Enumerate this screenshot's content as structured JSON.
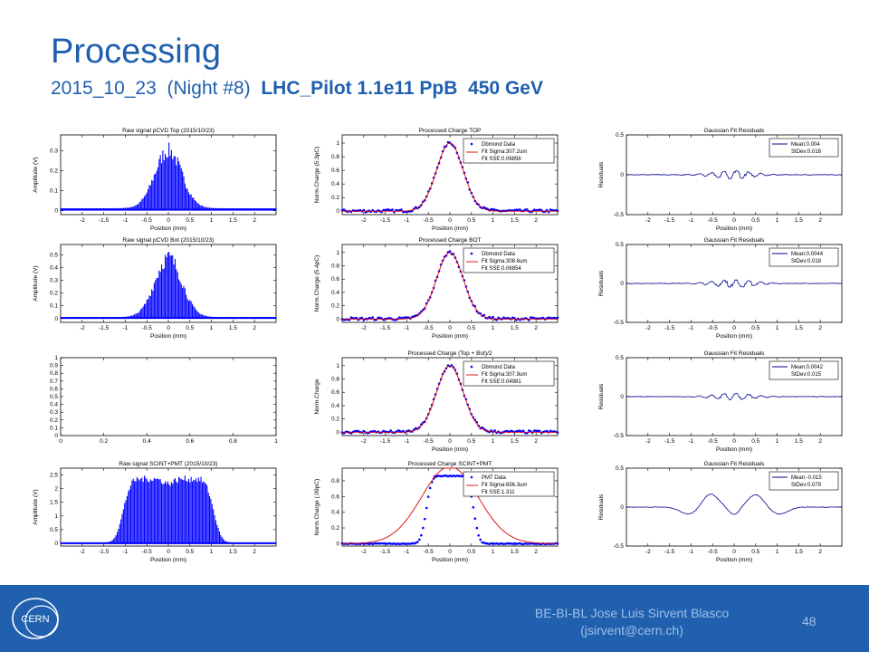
{
  "slide": {
    "title": "Processing",
    "subtitle_date": "2015_10_23",
    "subtitle_night": "(Night #8)",
    "subtitle_beam": "LHC_Pilot 1.1e11 PpB  450 GeV",
    "author_line1": "BE-BI-BL Jose Luis Sirvent Blasco",
    "author_line2": "(jsirvent@cern.ch)",
    "page_number": "48",
    "logo_text": "CERN"
  },
  "colors": {
    "title": "#1f5fae",
    "footer": "#2060ae",
    "data": "#0000ff",
    "fit": "#dd0000",
    "residual": "#00008b",
    "footer_text": "#9fbfe6"
  },
  "chart_data": [
    {
      "type": "bar",
      "title": "Raw signal pCVD Top (2015/10/23)",
      "xlabel": "Position (mm)",
      "ylabel": "Amplitude (V)",
      "xlim": [
        -2.5,
        2.5
      ],
      "ylim": [
        -0.02,
        0.38
      ],
      "xticks": [
        "-2",
        "-1.5",
        "-1",
        "-0.5",
        "0",
        "0.5",
        "1",
        "1.5",
        "2"
      ],
      "yticks": [
        "0",
        "0.1",
        "0.2",
        "0.3"
      ],
      "ytick_values": [
        0,
        0.1,
        0.2,
        0.3
      ],
      "shape": "gaussian",
      "peak": 0.33,
      "sigma_mm": 0.31
    },
    {
      "type": "scatter",
      "title": "Processed Charge TOP",
      "xlabel": "Position (mm)",
      "ylabel": "Norm.Charge (5.3pC)",
      "xlim": [
        -2.5,
        2.5
      ],
      "ylim": [
        -0.05,
        1.12
      ],
      "xticks": [
        "-2",
        "-1.5",
        "-1",
        "-0.5",
        "0",
        "0.5",
        "1",
        "1.5",
        "2"
      ],
      "yticks": [
        "0",
        "0.2",
        "0.4",
        "0.6",
        "0.8",
        "1"
      ],
      "ytick_values": [
        0,
        0.2,
        0.4,
        0.6,
        0.8,
        1
      ],
      "shape": "gaussian",
      "peak": 1.0,
      "sigma_mm": 0.3072,
      "legend": [
        "Dbmond Data",
        "Fit Sigma:307.2um",
        "Fit SSE:0.06856"
      ]
    },
    {
      "type": "line",
      "title": "Gaussian Fit Residuals",
      "xlabel": "Position (mm)",
      "ylabel": "Residuals",
      "xlim": [
        -2.5,
        2.5
      ],
      "ylim": [
        -0.5,
        0.5
      ],
      "xticks": [
        "-2",
        "-1.5",
        "-1",
        "-0.5",
        "0",
        "0.5",
        "1",
        "1.5",
        "2"
      ],
      "yticks": [
        "-0.5",
        "0",
        "0.5"
      ],
      "ytick_values": [
        -0.5,
        0,
        0.5
      ],
      "shape": "residual_small",
      "amp": 0.05,
      "legend": [
        "Mean:0.004",
        "StDev:0.018"
      ]
    },
    {
      "type": "bar",
      "title": "Raw signal pCVD Bot (2015/10/23)",
      "xlabel": "Position (mm)",
      "ylabel": "Amplitude (V)",
      "xlim": [
        -2.5,
        2.5
      ],
      "ylim": [
        -0.03,
        0.58
      ],
      "xticks": [
        "-2",
        "-1.5",
        "-1",
        "-0.5",
        "0",
        "0.5",
        "1",
        "1.5",
        "2"
      ],
      "yticks": [
        "0",
        "0.1",
        "0.2",
        "0.3",
        "0.4",
        "0.5"
      ],
      "ytick_values": [
        0,
        0.1,
        0.2,
        0.3,
        0.4,
        0.5
      ],
      "shape": "gaussian",
      "peak": 0.53,
      "sigma_mm": 0.31
    },
    {
      "type": "scatter",
      "title": "Processed Charge BOT",
      "xlabel": "Position (mm)",
      "ylabel": "Norm.Charge (5.4pC)",
      "xlim": [
        -2.5,
        2.5
      ],
      "ylim": [
        -0.05,
        1.12
      ],
      "xticks": [
        "-2",
        "-1.5",
        "-1",
        "-0.5",
        "0",
        "0.5",
        "1",
        "1.5",
        "2"
      ],
      "yticks": [
        "0",
        "0.2",
        "0.4",
        "0.6",
        "0.8",
        "1"
      ],
      "ytick_values": [
        0,
        0.2,
        0.4,
        0.6,
        0.8,
        1
      ],
      "shape": "gaussian",
      "peak": 1.0,
      "sigma_mm": 0.3086,
      "legend": [
        "Dbmond Data",
        "Fit Sigma:308.6um",
        "Fit SSE:0.06854"
      ]
    },
    {
      "type": "line",
      "title": "Gaussian Fit Residuals",
      "xlabel": "Position (mm)",
      "ylabel": "Residuals",
      "xlim": [
        -2.5,
        2.5
      ],
      "ylim": [
        -0.5,
        0.5
      ],
      "xticks": [
        "-2",
        "-1.5",
        "-1",
        "-0.5",
        "0",
        "0.5",
        "1",
        "1.5",
        "2"
      ],
      "yticks": [
        "-0.5",
        "0",
        "0.5"
      ],
      "ytick_values": [
        -0.5,
        0,
        0.5
      ],
      "shape": "residual_small",
      "amp": 0.05,
      "legend": [
        "Mean:0.0044",
        "StDev:0.018"
      ]
    },
    {
      "type": "line",
      "title": "",
      "xlabel": "",
      "ylabel": "",
      "xlim": [
        0,
        1
      ],
      "ylim": [
        0,
        1
      ],
      "xticks": [
        "0",
        "0.2",
        "0.4",
        "0.6",
        "0.8",
        "1"
      ],
      "yticks": [
        "0",
        "0.1",
        "0.2",
        "0.3",
        "0.4",
        "0.5",
        "0.6",
        "0.7",
        "0.8",
        "0.9",
        "1"
      ],
      "xtick_values": [
        0,
        0.2,
        0.4,
        0.6,
        0.8,
        1
      ],
      "ytick_values": [
        0,
        0.1,
        0.2,
        0.3,
        0.4,
        0.5,
        0.6,
        0.7,
        0.8,
        0.9,
        1
      ],
      "shape": "empty"
    },
    {
      "type": "scatter",
      "title": "Processed Charge (Top + Bot)/2",
      "xlabel": "Position (mm)",
      "ylabel": "Norm.Charge",
      "xlim": [
        -2.5,
        2.5
      ],
      "ylim": [
        -0.05,
        1.12
      ],
      "xticks": [
        "-2",
        "-1.5",
        "-1",
        "-0.5",
        "0",
        "0.5",
        "1",
        "1.5",
        "2"
      ],
      "yticks": [
        "0",
        "0.2",
        "0.4",
        "0.6",
        "0.8",
        "1"
      ],
      "ytick_values": [
        0,
        0.2,
        0.4,
        0.6,
        0.8,
        1
      ],
      "shape": "gaussian",
      "peak": 1.0,
      "sigma_mm": 0.3079,
      "legend": [
        "Dbmond Data",
        "Fit Sigma:307.9um",
        "Fit SSE:0.04981"
      ]
    },
    {
      "type": "line",
      "title": "Gaussian Fit Residuals",
      "xlabel": "Position (mm)",
      "ylabel": "Residuals",
      "xlim": [
        -2.5,
        2.5
      ],
      "ylim": [
        -0.5,
        0.5
      ],
      "xticks": [
        "-2",
        "-1.5",
        "-1",
        "-0.5",
        "0",
        "0.5",
        "1",
        "1.5",
        "2"
      ],
      "yticks": [
        "-0.5",
        "0",
        "0.5"
      ],
      "ytick_values": [
        -0.5,
        0,
        0.5
      ],
      "shape": "residual_small",
      "amp": 0.04,
      "legend": [
        "Mean:0.0042",
        "StDev:0.015"
      ]
    },
    {
      "type": "bar",
      "title": "Raw signal SCINT+PMT (2015/10/23)",
      "xlabel": "Position (mm)",
      "ylabel": "Amplitude (V)",
      "xlim": [
        -2.5,
        2.5
      ],
      "ylim": [
        -0.1,
        2.75
      ],
      "xticks": [
        "-2",
        "-1.5",
        "-1",
        "-0.5",
        "0",
        "0.5",
        "1",
        "1.5",
        "2"
      ],
      "yticks": [
        "0",
        "0.5",
        "1",
        "1.5",
        "2",
        "2.5"
      ],
      "ytick_values": [
        0,
        0.5,
        1,
        1.5,
        2,
        2.5
      ],
      "shape": "plateau",
      "peak": 2.45
    },
    {
      "type": "scatter",
      "title": "Processed Charge SCINT+PMT",
      "xlabel": "Position (mm)",
      "ylabel": "Norm.Charge (.09pC)",
      "xlim": [
        -2.5,
        2.5
      ],
      "ylim": [
        -0.03,
        0.96
      ],
      "xticks": [
        "-2",
        "-1.5",
        "-1",
        "-0.5",
        "0",
        "0.5",
        "1",
        "1.5",
        "2"
      ],
      "yticks": [
        "0",
        "0.2",
        "0.4",
        "0.6",
        "0.8"
      ],
      "ytick_values": [
        0,
        0.2,
        0.4,
        0.6,
        0.8
      ],
      "shape": "saturated",
      "peak": 1.0,
      "sigma_mm": 0.6563,
      "plateau": 0.86,
      "legend": [
        "PMT Data",
        "Fit Sigma:656.3um",
        "Fit SSE:1.311"
      ]
    },
    {
      "type": "line",
      "title": "Gaussian Fit Residuals",
      "xlabel": "Position (mm)",
      "ylabel": "Residuals",
      "xlim": [
        -2.5,
        2.5
      ],
      "ylim": [
        -0.5,
        0.5
      ],
      "xticks": [
        "-2",
        "-1.5",
        "-1",
        "-0.5",
        "0",
        "0.5",
        "1",
        "1.5",
        "2"
      ],
      "yticks": [
        "-0.5",
        "0",
        "0.5"
      ],
      "ytick_values": [
        -0.5,
        0,
        0.5
      ],
      "shape": "residual_pmt",
      "legend": [
        "Mean:-0.015",
        "StDev:0.079"
      ]
    }
  ]
}
